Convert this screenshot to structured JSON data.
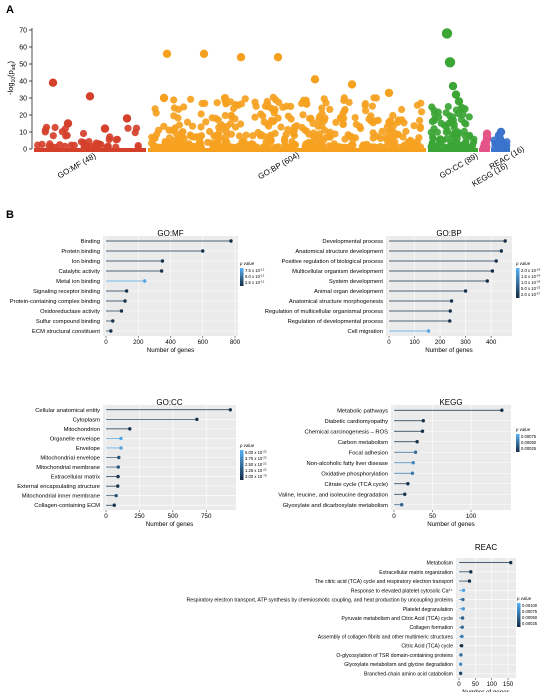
{
  "panel_labels": {
    "a": "A",
    "b": "B"
  },
  "manhattan": {
    "ylabel_main": "-log",
    "ylabel_sub": "10",
    "ylabel_paren": "(p",
    "ylabel_padj": "adj",
    "ylabel_close": ")",
    "yticks": [
      "0",
      "10",
      "20",
      "30",
      "40",
      "50",
      "60",
      "70"
    ]
  },
  "chart_data": [
    {
      "type": "scatter",
      "title": "",
      "ylabel": "-log10(padj)",
      "ylim": [
        0,
        70
      ],
      "grid": false,
      "series": [
        {
          "name": "GO:MF (48)",
          "color": "#d5402b",
          "count": 48,
          "highlights": [
            {
              "y": 39
            },
            {
              "y": 31
            },
            {
              "y": 18
            },
            {
              "y": 15
            },
            {
              "y": 12
            }
          ]
        },
        {
          "name": "GO:BP (604)",
          "color": "#f5a11f",
          "count": 604,
          "highlights": [
            {
              "y": 56
            },
            {
              "y": 56
            },
            {
              "y": 54
            },
            {
              "y": 54
            },
            {
              "y": 41
            },
            {
              "y": 38
            },
            {
              "y": 33
            },
            {
              "y": 30
            }
          ]
        },
        {
          "name": "GO:CC (89)",
          "color": "#3ba535",
          "count": 89,
          "highlights": [
            {
              "y": 68
            },
            {
              "y": 51
            },
            {
              "y": 37
            },
            {
              "y": 32
            },
            {
              "y": 28
            },
            {
              "y": 24
            }
          ]
        },
        {
          "name": "KEGG (16)",
          "color": "#e45588",
          "count": 16,
          "highlights": [
            {
              "y": 9
            },
            {
              "y": 7
            },
            {
              "y": 6
            }
          ]
        },
        {
          "name": "REAC (16)",
          "color": "#3a73cc",
          "count": 16,
          "highlights": [
            {
              "y": 10
            },
            {
              "y": 8
            },
            {
              "y": 6
            }
          ]
        }
      ]
    },
    {
      "type": "lollipop",
      "title": "GO:MF",
      "xlabel": "Number of genes",
      "xlim": [
        0,
        800
      ],
      "xticks": [
        "0",
        "200",
        "400",
        "600",
        "800"
      ],
      "legend_title": "p value",
      "legend_labels": [
        "7.5 x 10",
        "5.0 x 10",
        "2.5 x 10"
      ],
      "legend_exps": [
        "-12",
        "-12",
        "-12"
      ],
      "color_light": "#56b1f7",
      "color_dark": "#132b43",
      "categories": [
        "Binding",
        "Protein binding",
        "Ion binding",
        "Catalytic activity",
        "Metal ion binding",
        "Signaling receptor binding",
        "Protein-containing complex binding",
        "Oxidoreductase activity",
        "Sulfur compound binding",
        "ECM structural constituent"
      ],
      "values": [
        775,
        600,
        350,
        345,
        240,
        128,
        118,
        96,
        42,
        30
      ],
      "shade": [
        0.02,
        0.05,
        0.05,
        0.05,
        0.9,
        0.05,
        0.05,
        0.05,
        0.05,
        0.05
      ]
    },
    {
      "type": "lollipop",
      "title": "GO:BP",
      "xlabel": "Number of genes",
      "xlim": [
        0,
        470
      ],
      "xticks": [
        "0",
        "100",
        "200",
        "300",
        "400"
      ],
      "legend_title": "p value",
      "legend_labels": [
        "2.0 x 10",
        "1.5 x 10",
        "1.0 x 10",
        "5.0 x 10",
        "2.0 x 10"
      ],
      "legend_exps": [
        "-24",
        "-24",
        "-24",
        "-25",
        "-57"
      ],
      "color_light": "#56b1f7",
      "color_dark": "#132b43",
      "categories": [
        "Developmental process",
        "Anatomical structure development",
        "Positive regulation of biological process",
        "Multicellular organism development",
        "System development",
        "Animal organ development",
        "Anatomical structure morphogenesis",
        "Regulation of multicellular organismal process",
        "Regulation of developmental process",
        "Cell migration"
      ],
      "values": [
        455,
        440,
        420,
        405,
        385,
        300,
        245,
        240,
        238,
        155
      ],
      "shade": [
        0.02,
        0.02,
        0.05,
        0.02,
        0.02,
        0.05,
        0.05,
        0.05,
        0.05,
        0.9
      ]
    },
    {
      "type": "lollipop",
      "title": "GO:CC",
      "xlabel": "Number of genes",
      "xlim": [
        0,
        950
      ],
      "xticks": [
        "0",
        "250",
        "500",
        "750"
      ],
      "legend_title": "p value",
      "legend_labels": [
        "5.00 x 10",
        "3.75 x 10",
        "2.50 x 10",
        "1.25 x 10",
        "3.00 x 10"
      ],
      "legend_exps": [
        "-22",
        "-22",
        "-22",
        "-22",
        "-70"
      ],
      "color_light": "#56b1f7",
      "color_dark": "#132b43",
      "categories": [
        "Cellular anatomical entity",
        "Cytoplasm",
        "Mitochondrion",
        "Organelle envelope",
        "Envelope",
        "Mitochondrial envelope",
        "Mitochondrial membrane",
        "Extracellular matrix",
        "External encapsulating structure",
        "Mitochondrial inner membrane",
        "Collagen-containing ECM"
      ],
      "values": [
        930,
        680,
        178,
        112,
        112,
        96,
        92,
        90,
        88,
        76,
        62
      ],
      "shade": [
        0.02,
        0.05,
        0.05,
        0.9,
        0.9,
        0.3,
        0.3,
        0.05,
        0.05,
        0.3,
        0.05
      ]
    },
    {
      "type": "lollipop",
      "title": "KEGG",
      "xlabel": "Number of genes",
      "xlim": [
        0,
        148
      ],
      "xticks": [
        "0",
        "50",
        "100"
      ],
      "legend_title": "p value",
      "legend_labels": [
        "0.00075",
        "0.00050",
        "0.00025"
      ],
      "legend_exps": [
        "",
        "",
        ""
      ],
      "color_light": "#56b1f7",
      "color_dark": "#132b43",
      "categories": [
        "Metabolic pathways",
        "Diabetic cardiomyopathy",
        "Chemical carcinogenesis – ROS",
        "Carbon metabolism",
        "Focal adhesion",
        "Non-alcoholic fatty liver disease",
        "Oxidative phosphorylation",
        "Citrate cycle (TCA cycle)",
        "Valine, leucine, and isoleucine degradation",
        "Glyoxylate and dicarboxylate metabolism"
      ],
      "values": [
        140,
        38,
        37,
        30,
        28,
        25,
        24,
        18,
        14,
        10
      ],
      "shade": [
        0.02,
        0.05,
        0.05,
        0.05,
        0.5,
        0.7,
        0.6,
        0.05,
        0.05,
        0.4
      ]
    },
    {
      "type": "lollipop",
      "title": "REAC",
      "xlabel": "Number of genes",
      "xlim": [
        0,
        165
      ],
      "xticks": [
        "0",
        "50",
        "100",
        "150"
      ],
      "legend_title": "p value",
      "legend_labels": [
        "0.00100",
        "0.00075",
        "0.00050",
        "0.00025"
      ],
      "legend_exps": [
        "",
        "",
        "",
        ""
      ],
      "color_light": "#56b1f7",
      "color_dark": "#132b43",
      "categories": [
        "Metabolism",
        "Extracellular matrix organization",
        "The citric acid (TCA) cycle and respiratory electron transport",
        "Response to elevated platelet cytosolic Ca²⁺",
        "Respiratory electron transport, ATP synthesis by chemiosmotic coupling, and heat production by uncoupling proteins",
        "Platelet degranulation",
        "Pyruvate metabolism and Citric Acid (TCA) cycle",
        "Collagen formation",
        "Assembly of collagen fibrils and other multimeric structures",
        "Citric Acid (TCA) cycle",
        "O-glycosylation of TSR domain-containing proteins",
        "Glyoxylate metabolism and glycine degradation",
        "Branched-chain amino acid catabolism"
      ],
      "values": [
        158,
        36,
        32,
        14,
        12,
        13,
        11,
        10,
        9,
        8,
        6,
        5,
        5
      ],
      "shade": [
        0.02,
        0.05,
        0.05,
        0.9,
        0.5,
        0.8,
        0.4,
        0.5,
        0.6,
        0.05,
        0.5,
        0.7,
        0.2
      ]
    }
  ]
}
